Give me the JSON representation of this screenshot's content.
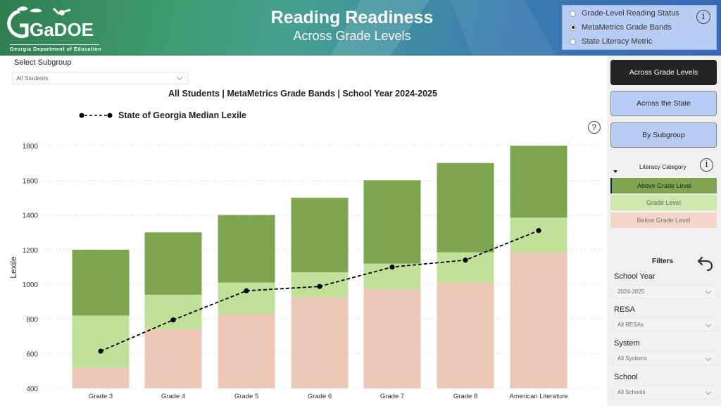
{
  "header": {
    "logo_text": "GaDOE",
    "logo_subtitle": "Georgia Department of Education",
    "title": "Reading Readiness",
    "subtitle": "Across Grade Levels",
    "metric_options": [
      {
        "label": "Grade-Level Reading Status",
        "selected": false
      },
      {
        "label": "MetaMetrics Grade Bands",
        "selected": true
      },
      {
        "label": "State Literacy Metric",
        "selected": false
      }
    ],
    "info_icon": "info-icon"
  },
  "subgroup": {
    "label": "Select Subgroup",
    "value": "All Students"
  },
  "chart_header": {
    "title": "All Students | MetaMetrics Grade Bands | School Year 2024-2025",
    "legend": "State of Georgia Median Lexile",
    "help_icon": "?"
  },
  "colors": {
    "above": "#7ea550",
    "grade": "#c1e19a",
    "below": "#edc8b7",
    "median_line": "#000000",
    "header_blue": "#3869b4",
    "nav_active": "#252423",
    "nav_idle": "#b8cdf3"
  },
  "chart_data": {
    "type": "bar",
    "stacked": true,
    "title": "All Students | MetaMetrics Grade Bands | School Year 2024-2025",
    "xlabel": "",
    "ylabel": "Lexile",
    "ylim": [
      400,
      1800
    ],
    "yticks": [
      400,
      600,
      800,
      1000,
      1200,
      1400,
      1600,
      1800
    ],
    "grid": "horizontal dotted",
    "categories": [
      "Grade 3",
      "Grade 4",
      "Grade 5",
      "Grade 6",
      "Grade 7",
      "Grade 8",
      "American Literature"
    ],
    "series": [
      {
        "name": "Below Grade Level",
        "color": "#edc8b7",
        "upper_bound": [
          520,
          740,
          830,
          925,
          970,
          1010,
          1185
        ]
      },
      {
        "name": "Grade Level",
        "color": "#c1e19a",
        "upper_bound": [
          820,
          940,
          1010,
          1070,
          1120,
          1185,
          1385
        ]
      },
      {
        "name": "Above Grade Level",
        "color": "#7ea550",
        "upper_bound": [
          1200,
          1300,
          1400,
          1500,
          1600,
          1700,
          1800
        ]
      },
      {
        "name": "State of Georgia Median Lexile",
        "type": "line",
        "style": "dashed",
        "color": "#000000",
        "values": [
          615,
          795,
          963,
          988,
          1100,
          1140,
          1310
        ]
      }
    ],
    "legend_position": "top-left"
  },
  "sidebar": {
    "nav": [
      {
        "label": "Across Grade Levels",
        "active": true
      },
      {
        "label": "Across the State",
        "active": false
      },
      {
        "label": "By Subgroup",
        "active": false
      }
    ],
    "literacy_category": {
      "title": "Literacy Category",
      "items": [
        {
          "label": "Above Grade Level",
          "color": "#7ea550",
          "text_color": "#222222"
        },
        {
          "label": "Grade Level",
          "color": "#cfe8b0",
          "text_color": "#666666"
        },
        {
          "label": "Below Grade Level",
          "color": "#f4d5c8",
          "text_color": "#777777"
        }
      ]
    },
    "filters": {
      "title": "Filters",
      "items": [
        {
          "label": "School Year",
          "value": "2024-2025"
        },
        {
          "label": "RESA",
          "value": "All RESAs"
        },
        {
          "label": "System",
          "value": "All Systems"
        },
        {
          "label": "School",
          "value": "All Schools"
        }
      ]
    }
  }
}
